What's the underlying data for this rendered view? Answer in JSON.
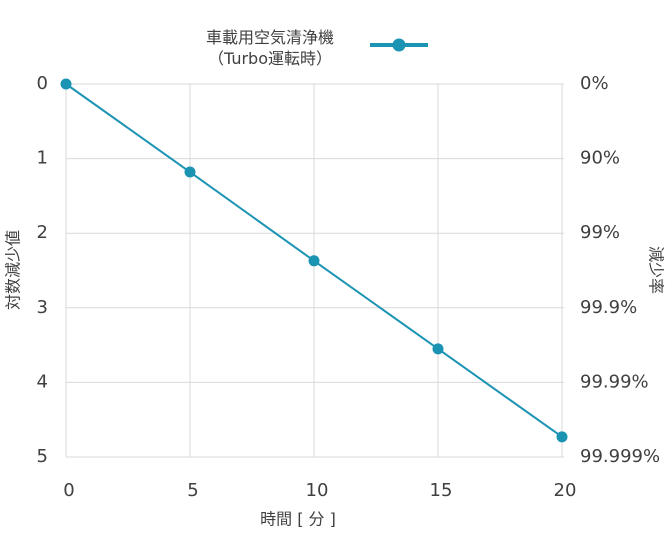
{
  "chart_data": {
    "type": "line",
    "x_label": "時間 [ 分 ]",
    "y_label": "対数減少値",
    "y2_label": "減少率",
    "x": [
      0,
      5,
      10,
      15,
      20
    ],
    "series": [
      {
        "name": "車載用空気清浄機\n（Turbo運転時）",
        "color": "#1b93b3",
        "values": [
          0,
          1.18,
          2.37,
          3.55,
          4.73
        ]
      }
    ],
    "xlim": [
      0,
      20
    ],
    "xticks": [
      0,
      5,
      10,
      15,
      20
    ],
    "ylim": [
      5,
      0
    ],
    "yticks": [
      0,
      1,
      2,
      3,
      4,
      5
    ],
    "y2lim": [
      5,
      0
    ],
    "y2ticks": [
      {
        "value": 0,
        "label": "0%"
      },
      {
        "value": 1,
        "label": "90%"
      },
      {
        "value": 2,
        "label": "99%"
      },
      {
        "value": 3,
        "label": "99.9%"
      },
      {
        "value": 4,
        "label": "99.99%"
      },
      {
        "value": 5,
        "label": "99.999%"
      }
    ],
    "grid": true,
    "legend": "top"
  }
}
